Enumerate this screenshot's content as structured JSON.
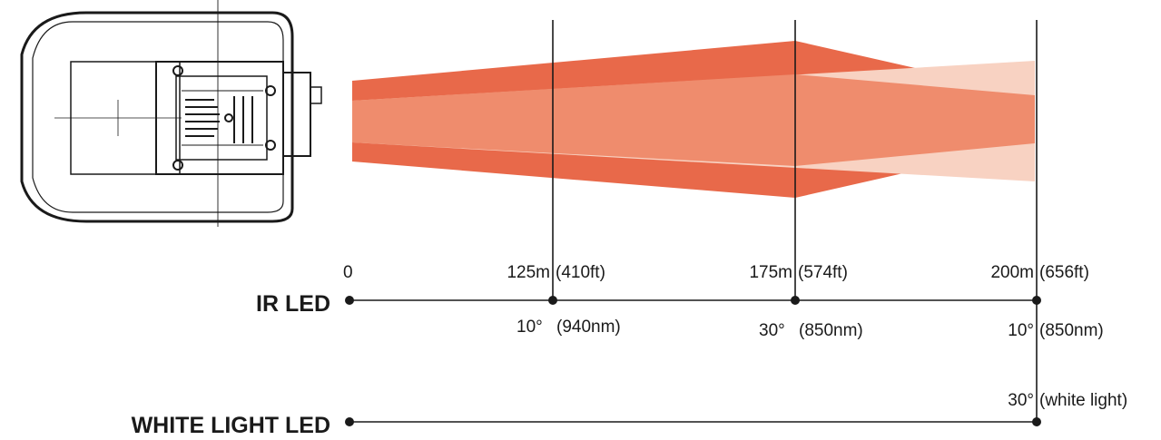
{
  "rows": {
    "ir_label": "IR LED",
    "white_label": "WHITE LIGHT LED"
  },
  "distances": {
    "d0": "0",
    "d1_m": "125m",
    "d1_ft": "(410ft)",
    "d2_m": "175m",
    "d2_ft": "(574ft)",
    "d3_m": "200m",
    "d3_ft": "(656ft)"
  },
  "angles": {
    "a1_deg": "10°",
    "a1_wave": "(940nm)",
    "a2_deg": "30°",
    "a2_wave": "(850nm)",
    "a3_deg": "10°",
    "a3_wave": "(850nm)",
    "a4_deg": "30°",
    "a4_wave": "(white light)"
  },
  "colors": {
    "beam_dark": "#e8694a",
    "beam_mid": "#ef8c6d",
    "beam_light": "#f8d2c2",
    "line": "#1a1a1a"
  },
  "device": {
    "icon": "ptz-camera-top-view-icon"
  }
}
